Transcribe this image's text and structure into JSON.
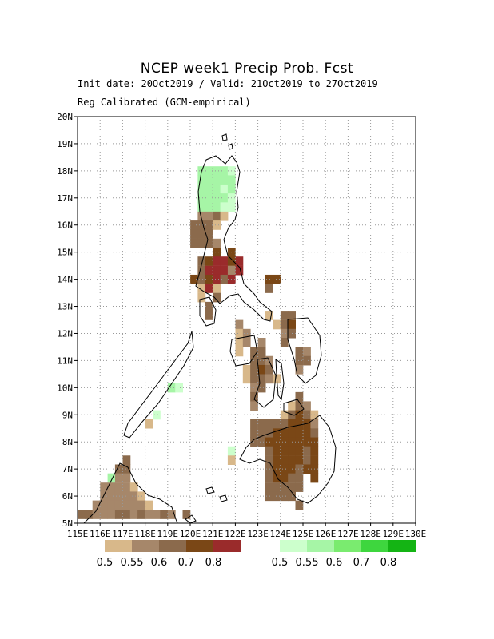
{
  "header": {
    "title": "NCEP week1 Precip Prob. Fcst",
    "line1": "Init date: 20Oct2019 / Valid: 21Oct2019 to 27Oct2019",
    "line2": "Reg Calibrated (GCM-empirical)"
  },
  "axes": {
    "lat_labels": [
      "5N",
      "6N",
      "7N",
      "8N",
      "9N",
      "10N",
      "11N",
      "12N",
      "13N",
      "14N",
      "15N",
      "16N",
      "17N",
      "18N",
      "19N",
      "20N"
    ],
    "lon_labels": [
      "115E",
      "116E",
      "117E",
      "118E",
      "119E",
      "120E",
      "121E",
      "122E",
      "123E",
      "124E",
      "125E",
      "126E",
      "127E",
      "128E",
      "129E",
      "130E"
    ],
    "lon_range": [
      115,
      130
    ],
    "lat_range": [
      5,
      20
    ]
  },
  "legend": {
    "dry": {
      "colors": [
        "#d8b88a",
        "#a6876a",
        "#8b6a4c",
        "#7a4716",
        "#9a2b2b"
      ],
      "labels": [
        "0.5",
        "0.55",
        "0.6",
        "0.7",
        "0.8"
      ]
    },
    "wet": {
      "colors": [
        "#ccffcc",
        "#a6f5a6",
        "#7aeb6f",
        "#3ed63e",
        "#14b414"
      ],
      "labels": [
        "0.5",
        "0.55",
        "0.6",
        "0.7",
        "0.8"
      ]
    }
  },
  "grid_cells": [
    {
      "lon": 120.5,
      "lat": 18.0,
      "v": "w2"
    },
    {
      "lon": 120.83,
      "lat": 18.0,
      "v": "w2"
    },
    {
      "lon": 121.17,
      "lat": 18.0,
      "v": "w2"
    },
    {
      "lon": 121.5,
      "lat": 18.0,
      "v": "w2"
    },
    {
      "lon": 121.83,
      "lat": 18.0,
      "v": "w1"
    },
    {
      "lon": 120.5,
      "lat": 17.67,
      "v": "w2"
    },
    {
      "lon": 120.83,
      "lat": 17.67,
      "v": "w2"
    },
    {
      "lon": 121.17,
      "lat": 17.67,
      "v": "w2"
    },
    {
      "lon": 121.5,
      "lat": 17.67,
      "v": "w2"
    },
    {
      "lon": 121.83,
      "lat": 17.67,
      "v": "w2"
    },
    {
      "lon": 120.5,
      "lat": 17.33,
      "v": "w2"
    },
    {
      "lon": 120.83,
      "lat": 17.33,
      "v": "w2"
    },
    {
      "lon": 121.17,
      "lat": 17.33,
      "v": "w2"
    },
    {
      "lon": 121.5,
      "lat": 17.33,
      "v": "w1"
    },
    {
      "lon": 121.83,
      "lat": 17.33,
      "v": "w2"
    },
    {
      "lon": 120.5,
      "lat": 17.0,
      "v": "w2"
    },
    {
      "lon": 120.83,
      "lat": 17.0,
      "v": "w2"
    },
    {
      "lon": 121.17,
      "lat": 17.0,
      "v": "w2"
    },
    {
      "lon": 121.5,
      "lat": 17.0,
      "v": "w2"
    },
    {
      "lon": 121.83,
      "lat": 17.0,
      "v": "w1"
    },
    {
      "lon": 120.5,
      "lat": 16.67,
      "v": "w2"
    },
    {
      "lon": 120.83,
      "lat": 16.67,
      "v": "w2"
    },
    {
      "lon": 121.17,
      "lat": 16.67,
      "v": "w2"
    },
    {
      "lon": 121.5,
      "lat": 16.67,
      "v": "w1"
    },
    {
      "lon": 121.83,
      "lat": 16.67,
      "v": "w1"
    },
    {
      "lon": 120.5,
      "lat": 16.33,
      "v": "d2"
    },
    {
      "lon": 120.83,
      "lat": 16.33,
      "v": "d2"
    },
    {
      "lon": 121.17,
      "lat": 16.33,
      "v": "d3"
    },
    {
      "lon": 121.5,
      "lat": 16.33,
      "v": "d1"
    },
    {
      "lon": 120.17,
      "lat": 16.0,
      "v": "d3"
    },
    {
      "lon": 120.5,
      "lat": 16.0,
      "v": "d3"
    },
    {
      "lon": 120.83,
      "lat": 16.0,
      "v": "d3"
    },
    {
      "lon": 121.17,
      "lat": 16.0,
      "v": "d1"
    },
    {
      "lon": 120.17,
      "lat": 15.67,
      "v": "d3"
    },
    {
      "lon": 120.5,
      "lat": 15.67,
      "v": "d3"
    },
    {
      "lon": 120.83,
      "lat": 15.67,
      "v": "d3"
    },
    {
      "lon": 120.17,
      "lat": 15.33,
      "v": "d3"
    },
    {
      "lon": 120.5,
      "lat": 15.33,
      "v": "d3"
    },
    {
      "lon": 120.83,
      "lat": 15.33,
      "v": "d3"
    },
    {
      "lon": 121.17,
      "lat": 15.33,
      "v": "d2"
    },
    {
      "lon": 121.17,
      "lat": 15.0,
      "v": "d4"
    },
    {
      "lon": 121.83,
      "lat": 15.0,
      "v": "d4"
    },
    {
      "lon": 120.5,
      "lat": 14.67,
      "v": "d3"
    },
    {
      "lon": 120.83,
      "lat": 14.67,
      "v": "d4"
    },
    {
      "lon": 121.17,
      "lat": 14.67,
      "v": "d5"
    },
    {
      "lon": 121.5,
      "lat": 14.67,
      "v": "d5"
    },
    {
      "lon": 121.83,
      "lat": 14.67,
      "v": "d4"
    },
    {
      "lon": 122.17,
      "lat": 14.67,
      "v": "d5"
    },
    {
      "lon": 120.5,
      "lat": 14.33,
      "v": "d3"
    },
    {
      "lon": 120.83,
      "lat": 14.33,
      "v": "d5"
    },
    {
      "lon": 121.17,
      "lat": 14.33,
      "v": "d5"
    },
    {
      "lon": 121.5,
      "lat": 14.33,
      "v": "d5"
    },
    {
      "lon": 121.83,
      "lat": 14.33,
      "v": "d2"
    },
    {
      "lon": 122.17,
      "lat": 14.33,
      "v": "d5"
    },
    {
      "lon": 120.17,
      "lat": 14.0,
      "v": "d4"
    },
    {
      "lon": 120.5,
      "lat": 14.0,
      "v": "d3"
    },
    {
      "lon": 120.83,
      "lat": 14.0,
      "v": "d4"
    },
    {
      "lon": 121.17,
      "lat": 14.0,
      "v": "d5"
    },
    {
      "lon": 121.5,
      "lat": 14.0,
      "v": "d3"
    },
    {
      "lon": 121.83,
      "lat": 14.0,
      "v": "d5"
    },
    {
      "lon": 123.5,
      "lat": 14.0,
      "v": "d4"
    },
    {
      "lon": 123.83,
      "lat": 14.0,
      "v": "d4"
    },
    {
      "lon": 120.5,
      "lat": 13.67,
      "v": "d1"
    },
    {
      "lon": 120.83,
      "lat": 13.67,
      "v": "d5"
    },
    {
      "lon": 121.17,
      "lat": 13.67,
      "v": "d1"
    },
    {
      "lon": 123.5,
      "lat": 13.67,
      "v": "d3"
    },
    {
      "lon": 120.5,
      "lat": 13.33,
      "v": "d1"
    },
    {
      "lon": 121.17,
      "lat": 13.33,
      "v": "d3"
    },
    {
      "lon": 120.83,
      "lat": 13.0,
      "v": "d3"
    },
    {
      "lon": 120.83,
      "lat": 12.67,
      "v": "d3"
    },
    {
      "lon": 123.5,
      "lat": 12.67,
      "v": "d1"
    },
    {
      "lon": 124.17,
      "lat": 12.67,
      "v": "d3"
    },
    {
      "lon": 124.5,
      "lat": 12.67,
      "v": "d3"
    },
    {
      "lon": 123.83,
      "lat": 12.33,
      "v": "d1"
    },
    {
      "lon": 124.17,
      "lat": 12.33,
      "v": "d3"
    },
    {
      "lon": 124.5,
      "lat": 12.33,
      "v": "d4"
    },
    {
      "lon": 122.17,
      "lat": 12.33,
      "v": "d2"
    },
    {
      "lon": 122.17,
      "lat": 12.0,
      "v": "d1"
    },
    {
      "lon": 122.5,
      "lat": 12.0,
      "v": "d2"
    },
    {
      "lon": 124.17,
      "lat": 12.0,
      "v": "d2"
    },
    {
      "lon": 124.5,
      "lat": 12.0,
      "v": "d3"
    },
    {
      "lon": 122.17,
      "lat": 11.67,
      "v": "d1"
    },
    {
      "lon": 122.5,
      "lat": 11.67,
      "v": "d2"
    },
    {
      "lon": 123.17,
      "lat": 11.67,
      "v": "d2"
    },
    {
      "lon": 124.17,
      "lat": 11.67,
      "v": "d3"
    },
    {
      "lon": 122.17,
      "lat": 11.33,
      "v": "d1"
    },
    {
      "lon": 122.83,
      "lat": 11.33,
      "v": "d3"
    },
    {
      "lon": 123.17,
      "lat": 11.33,
      "v": "d3"
    },
    {
      "lon": 124.83,
      "lat": 11.33,
      "v": "d3"
    },
    {
      "lon": 125.17,
      "lat": 11.33,
      "v": "d2"
    },
    {
      "lon": 122.83,
      "lat": 11.0,
      "v": "d3"
    },
    {
      "lon": 123.17,
      "lat": 11.0,
      "v": "d3"
    },
    {
      "lon": 123.5,
      "lat": 11.0,
      "v": "d2"
    },
    {
      "lon": 124.83,
      "lat": 11.0,
      "v": "d3"
    },
    {
      "lon": 125.17,
      "lat": 11.0,
      "v": "d3"
    },
    {
      "lon": 122.5,
      "lat": 10.67,
      "v": "d1"
    },
    {
      "lon": 122.83,
      "lat": 10.67,
      "v": "d3"
    },
    {
      "lon": 123.17,
      "lat": 10.67,
      "v": "d4"
    },
    {
      "lon": 123.5,
      "lat": 10.67,
      "v": "d3"
    },
    {
      "lon": 124.83,
      "lat": 10.67,
      "v": "d2"
    },
    {
      "lon": 122.5,
      "lat": 10.33,
      "v": "d1"
    },
    {
      "lon": 122.83,
      "lat": 10.33,
      "v": "d3"
    },
    {
      "lon": 123.17,
      "lat": 10.33,
      "v": "d3"
    },
    {
      "lon": 123.5,
      "lat": 10.33,
      "v": "d2"
    },
    {
      "lon": 123.83,
      "lat": 10.33,
      "v": "d1"
    },
    {
      "lon": 122.83,
      "lat": 10.0,
      "v": "d2"
    },
    {
      "lon": 123.17,
      "lat": 10.0,
      "v": "d3"
    },
    {
      "lon": 122.83,
      "lat": 9.67,
      "v": "d3"
    },
    {
      "lon": 124.83,
      "lat": 9.67,
      "v": "d3"
    },
    {
      "lon": 122.83,
      "lat": 9.33,
      "v": "d2"
    },
    {
      "lon": 124.5,
      "lat": 9.33,
      "v": "d1"
    },
    {
      "lon": 124.83,
      "lat": 9.33,
      "v": "d3"
    },
    {
      "lon": 125.17,
      "lat": 9.33,
      "v": "d2"
    },
    {
      "lon": 124.17,
      "lat": 9.0,
      "v": "d1"
    },
    {
      "lon": 124.5,
      "lat": 9.0,
      "v": "d3"
    },
    {
      "lon": 124.83,
      "lat": 9.0,
      "v": "d4"
    },
    {
      "lon": 125.17,
      "lat": 9.0,
      "v": "d3"
    },
    {
      "lon": 125.5,
      "lat": 9.0,
      "v": "d1"
    },
    {
      "lon": 122.83,
      "lat": 8.67,
      "v": "d3"
    },
    {
      "lon": 123.17,
      "lat": 8.67,
      "v": "d3"
    },
    {
      "lon": 123.5,
      "lat": 8.67,
      "v": "d3"
    },
    {
      "lon": 123.83,
      "lat": 8.67,
      "v": "d3"
    },
    {
      "lon": 124.17,
      "lat": 8.67,
      "v": "d3"
    },
    {
      "lon": 124.5,
      "lat": 8.67,
      "v": "d4"
    },
    {
      "lon": 124.83,
      "lat": 8.67,
      "v": "d4"
    },
    {
      "lon": 125.17,
      "lat": 8.67,
      "v": "d4"
    },
    {
      "lon": 125.5,
      "lat": 8.67,
      "v": "d2"
    },
    {
      "lon": 122.83,
      "lat": 8.33,
      "v": "d3"
    },
    {
      "lon": 123.17,
      "lat": 8.33,
      "v": "d3"
    },
    {
      "lon": 123.5,
      "lat": 8.33,
      "v": "d3"
    },
    {
      "lon": 123.83,
      "lat": 8.33,
      "v": "d4"
    },
    {
      "lon": 124.17,
      "lat": 8.33,
      "v": "d4"
    },
    {
      "lon": 124.5,
      "lat": 8.33,
      "v": "d4"
    },
    {
      "lon": 124.83,
      "lat": 8.33,
      "v": "d4"
    },
    {
      "lon": 125.17,
      "lat": 8.33,
      "v": "d4"
    },
    {
      "lon": 125.5,
      "lat": 8.33,
      "v": "d3"
    },
    {
      "lon": 122.83,
      "lat": 8.0,
      "v": "d3"
    },
    {
      "lon": 123.17,
      "lat": 8.0,
      "v": "d3"
    },
    {
      "lon": 123.5,
      "lat": 8.0,
      "v": "d4"
    },
    {
      "lon": 123.83,
      "lat": 8.0,
      "v": "d4"
    },
    {
      "lon": 124.17,
      "lat": 8.0,
      "v": "d4"
    },
    {
      "lon": 124.5,
      "lat": 8.0,
      "v": "d4"
    },
    {
      "lon": 124.83,
      "lat": 8.0,
      "v": "d4"
    },
    {
      "lon": 125.17,
      "lat": 8.0,
      "v": "d4"
    },
    {
      "lon": 125.5,
      "lat": 8.0,
      "v": "d4"
    },
    {
      "lon": 121.83,
      "lat": 7.67,
      "v": "w1"
    },
    {
      "lon": 121.83,
      "lat": 7.33,
      "v": "d1"
    },
    {
      "lon": 123.5,
      "lat": 7.67,
      "v": "d3"
    },
    {
      "lon": 123.83,
      "lat": 7.67,
      "v": "d4"
    },
    {
      "lon": 124.17,
      "lat": 7.67,
      "v": "d4"
    },
    {
      "lon": 124.5,
      "lat": 7.67,
      "v": "d4"
    },
    {
      "lon": 124.83,
      "lat": 7.67,
      "v": "d4"
    },
    {
      "lon": 125.17,
      "lat": 7.67,
      "v": "d3"
    },
    {
      "lon": 125.5,
      "lat": 7.67,
      "v": "d4"
    },
    {
      "lon": 123.5,
      "lat": 7.33,
      "v": "d3"
    },
    {
      "lon": 123.83,
      "lat": 7.33,
      "v": "d4"
    },
    {
      "lon": 124.17,
      "lat": 7.33,
      "v": "d4"
    },
    {
      "lon": 124.5,
      "lat": 7.33,
      "v": "d4"
    },
    {
      "lon": 124.83,
      "lat": 7.33,
      "v": "d4"
    },
    {
      "lon": 125.17,
      "lat": 7.33,
      "v": "d3"
    },
    {
      "lon": 125.5,
      "lat": 7.33,
      "v": "d4"
    },
    {
      "lon": 123.5,
      "lat": 7.0,
      "v": "d3"
    },
    {
      "lon": 123.83,
      "lat": 7.0,
      "v": "d4"
    },
    {
      "lon": 124.17,
      "lat": 7.0,
      "v": "d4"
    },
    {
      "lon": 124.5,
      "lat": 7.0,
      "v": "d4"
    },
    {
      "lon": 124.83,
      "lat": 7.0,
      "v": "d3"
    },
    {
      "lon": 125.17,
      "lat": 7.0,
      "v": "d4"
    },
    {
      "lon": 125.5,
      "lat": 7.0,
      "v": "d4"
    },
    {
      "lon": 123.5,
      "lat": 6.67,
      "v": "d3"
    },
    {
      "lon": 123.83,
      "lat": 6.67,
      "v": "d4"
    },
    {
      "lon": 124.17,
      "lat": 6.67,
      "v": "d4"
    },
    {
      "lon": 124.5,
      "lat": 6.67,
      "v": "d3"
    },
    {
      "lon": 124.83,
      "lat": 6.67,
      "v": "d3"
    },
    {
      "lon": 125.5,
      "lat": 6.67,
      "v": "d4"
    },
    {
      "lon": 123.5,
      "lat": 6.33,
      "v": "d3"
    },
    {
      "lon": 123.83,
      "lat": 6.33,
      "v": "d3"
    },
    {
      "lon": 124.17,
      "lat": 6.33,
      "v": "d3"
    },
    {
      "lon": 124.5,
      "lat": 6.33,
      "v": "d3"
    },
    {
      "lon": 124.83,
      "lat": 6.33,
      "v": "d3"
    },
    {
      "lon": 123.5,
      "lat": 6.0,
      "v": "d3"
    },
    {
      "lon": 123.83,
      "lat": 6.0,
      "v": "d3"
    },
    {
      "lon": 124.17,
      "lat": 6.0,
      "v": "d3"
    },
    {
      "lon": 124.5,
      "lat": 6.0,
      "v": "d3"
    },
    {
      "lon": 124.83,
      "lat": 5.67,
      "v": "d3"
    },
    {
      "lon": 117.17,
      "lat": 7.33,
      "v": "d3"
    },
    {
      "lon": 116.83,
      "lat": 7.0,
      "v": "d3"
    },
    {
      "lon": 117.17,
      "lat": 7.0,
      "v": "d3"
    },
    {
      "lon": 116.5,
      "lat": 6.67,
      "v": "w2"
    },
    {
      "lon": 116.83,
      "lat": 6.67,
      "v": "d2"
    },
    {
      "lon": 117.17,
      "lat": 6.67,
      "v": "d2"
    },
    {
      "lon": 116.17,
      "lat": 6.33,
      "v": "d2"
    },
    {
      "lon": 116.5,
      "lat": 6.33,
      "v": "d2"
    },
    {
      "lon": 116.83,
      "lat": 6.33,
      "v": "d2"
    },
    {
      "lon": 117.17,
      "lat": 6.33,
      "v": "d2"
    },
    {
      "lon": 117.5,
      "lat": 6.33,
      "v": "d1"
    },
    {
      "lon": 116.17,
      "lat": 6.0,
      "v": "d2"
    },
    {
      "lon": 116.5,
      "lat": 6.0,
      "v": "d2"
    },
    {
      "lon": 116.83,
      "lat": 6.0,
      "v": "d2"
    },
    {
      "lon": 117.17,
      "lat": 6.0,
      "v": "d2"
    },
    {
      "lon": 117.5,
      "lat": 6.0,
      "v": "d2"
    },
    {
      "lon": 117.83,
      "lat": 6.0,
      "v": "d1"
    },
    {
      "lon": 115.83,
      "lat": 5.67,
      "v": "d2"
    },
    {
      "lon": 116.17,
      "lat": 5.67,
      "v": "d2"
    },
    {
      "lon": 116.5,
      "lat": 5.67,
      "v": "d2"
    },
    {
      "lon": 116.83,
      "lat": 5.67,
      "v": "d2"
    },
    {
      "lon": 117.17,
      "lat": 5.67,
      "v": "d2"
    },
    {
      "lon": 117.5,
      "lat": 5.67,
      "v": "d2"
    },
    {
      "lon": 117.83,
      "lat": 5.67,
      "v": "d2"
    },
    {
      "lon": 118.17,
      "lat": 5.67,
      "v": "d1"
    },
    {
      "lon": 115.17,
      "lat": 5.33,
      "v": "d3"
    },
    {
      "lon": 115.5,
      "lat": 5.33,
      "v": "d3"
    },
    {
      "lon": 115.83,
      "lat": 5.33,
      "v": "d2"
    },
    {
      "lon": 116.17,
      "lat": 5.33,
      "v": "d2"
    },
    {
      "lon": 116.5,
      "lat": 5.33,
      "v": "d2"
    },
    {
      "lon": 116.83,
      "lat": 5.33,
      "v": "d3"
    },
    {
      "lon": 117.17,
      "lat": 5.33,
      "v": "d3"
    },
    {
      "lon": 117.5,
      "lat": 5.33,
      "v": "d2"
    },
    {
      "lon": 117.83,
      "lat": 5.33,
      "v": "d3"
    },
    {
      "lon": 118.17,
      "lat": 5.33,
      "v": "d2"
    },
    {
      "lon": 118.5,
      "lat": 5.33,
      "v": "d2"
    },
    {
      "lon": 118.83,
      "lat": 5.33,
      "v": "d3"
    },
    {
      "lon": 119.17,
      "lat": 5.33,
      "v": "d2"
    },
    {
      "lon": 119.83,
      "lat": 5.33,
      "v": "d3"
    },
    {
      "lon": 119.17,
      "lat": 10.0,
      "v": "w2"
    },
    {
      "lon": 119.5,
      "lat": 10.0,
      "v": "w1"
    },
    {
      "lon": 118.5,
      "lat": 9.0,
      "v": "w1"
    },
    {
      "lon": 118.17,
      "lat": 8.67,
      "v": "d1"
    }
  ]
}
